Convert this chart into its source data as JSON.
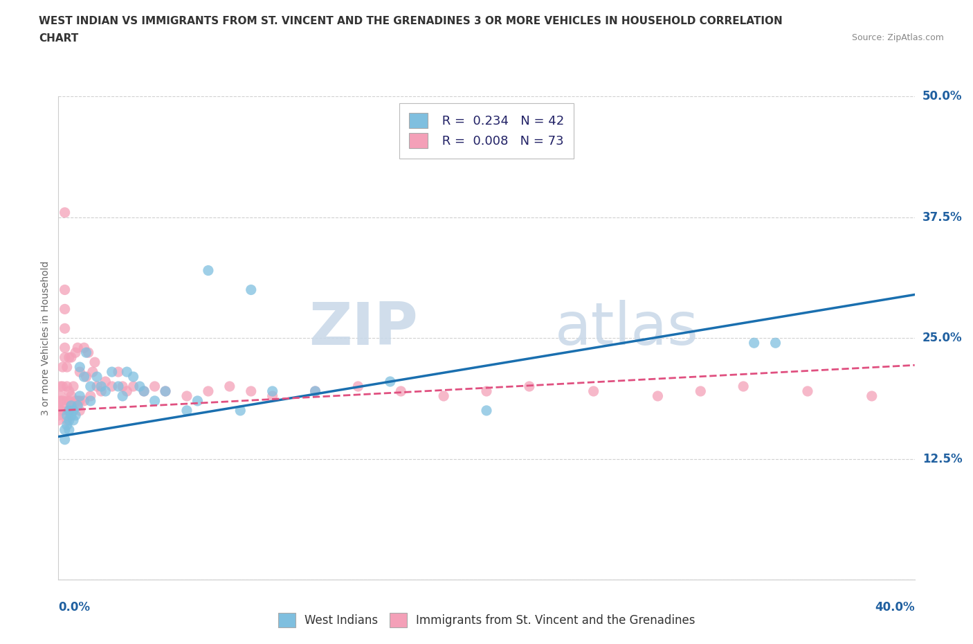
{
  "title_line1": "WEST INDIAN VS IMMIGRANTS FROM ST. VINCENT AND THE GRENADINES 3 OR MORE VEHICLES IN HOUSEHOLD CORRELATION",
  "title_line2": "CHART",
  "source_text": "Source: ZipAtlas.com",
  "ylabel": "3 or more Vehicles in Household",
  "xlim": [
    0.0,
    0.4
  ],
  "ylim": [
    0.0,
    0.5
  ],
  "yticks": [
    0.0,
    0.125,
    0.25,
    0.375,
    0.5
  ],
  "ytick_labels": [
    "",
    "12.5%",
    "25.0%",
    "37.5%",
    "50.0%"
  ],
  "blue_R": 0.234,
  "blue_N": 42,
  "pink_R": 0.008,
  "pink_N": 73,
  "blue_color": "#7fbfdf",
  "pink_color": "#f4a0b8",
  "blue_line_color": "#1a6faf",
  "pink_line_color": "#e05080",
  "watermark_zip": "ZIP",
  "watermark_atlas": "atlas",
  "blue_trend_x0": 0.0,
  "blue_trend_y0": 0.148,
  "blue_trend_x1": 0.4,
  "blue_trend_y1": 0.295,
  "pink_trend_x0": 0.0,
  "pink_trend_y0": 0.175,
  "pink_trend_x1": 0.4,
  "pink_trend_y1": 0.222,
  "blue_x": [
    0.003,
    0.003,
    0.004,
    0.004,
    0.005,
    0.005,
    0.005,
    0.006,
    0.006,
    0.007,
    0.007,
    0.008,
    0.009,
    0.01,
    0.01,
    0.012,
    0.013,
    0.015,
    0.015,
    0.018,
    0.02,
    0.022,
    0.025,
    0.028,
    0.03,
    0.032,
    0.035,
    0.038,
    0.04,
    0.045,
    0.05,
    0.06,
    0.065,
    0.07,
    0.085,
    0.09,
    0.1,
    0.12,
    0.155,
    0.2,
    0.325,
    0.335
  ],
  "blue_y": [
    0.155,
    0.145,
    0.17,
    0.16,
    0.175,
    0.165,
    0.155,
    0.18,
    0.17,
    0.175,
    0.165,
    0.17,
    0.18,
    0.22,
    0.19,
    0.21,
    0.235,
    0.2,
    0.185,
    0.21,
    0.2,
    0.195,
    0.215,
    0.2,
    0.19,
    0.215,
    0.21,
    0.2,
    0.195,
    0.185,
    0.195,
    0.175,
    0.185,
    0.32,
    0.175,
    0.3,
    0.195,
    0.195,
    0.205,
    0.175,
    0.245,
    0.245
  ],
  "pink_x": [
    0.0,
    0.0,
    0.0,
    0.001,
    0.001,
    0.001,
    0.001,
    0.002,
    0.002,
    0.002,
    0.002,
    0.003,
    0.003,
    0.003,
    0.003,
    0.003,
    0.003,
    0.004,
    0.004,
    0.004,
    0.004,
    0.004,
    0.005,
    0.005,
    0.005,
    0.005,
    0.006,
    0.006,
    0.006,
    0.007,
    0.007,
    0.008,
    0.008,
    0.009,
    0.009,
    0.01,
    0.01,
    0.01,
    0.012,
    0.012,
    0.013,
    0.014,
    0.015,
    0.016,
    0.017,
    0.018,
    0.02,
    0.022,
    0.025,
    0.028,
    0.03,
    0.032,
    0.035,
    0.04,
    0.045,
    0.05,
    0.06,
    0.07,
    0.08,
    0.09,
    0.1,
    0.12,
    0.14,
    0.16,
    0.18,
    0.2,
    0.22,
    0.25,
    0.28,
    0.3,
    0.32,
    0.35,
    0.38
  ],
  "pink_y": [
    0.165,
    0.17,
    0.18,
    0.175,
    0.185,
    0.19,
    0.2,
    0.175,
    0.185,
    0.2,
    0.22,
    0.23,
    0.24,
    0.26,
    0.28,
    0.3,
    0.38,
    0.165,
    0.175,
    0.185,
    0.2,
    0.22,
    0.175,
    0.185,
    0.195,
    0.23,
    0.18,
    0.19,
    0.23,
    0.18,
    0.2,
    0.185,
    0.235,
    0.185,
    0.24,
    0.175,
    0.185,
    0.215,
    0.185,
    0.24,
    0.21,
    0.235,
    0.19,
    0.215,
    0.225,
    0.2,
    0.195,
    0.205,
    0.2,
    0.215,
    0.2,
    0.195,
    0.2,
    0.195,
    0.2,
    0.195,
    0.19,
    0.195,
    0.2,
    0.195,
    0.19,
    0.195,
    0.2,
    0.195,
    0.19,
    0.195,
    0.2,
    0.195,
    0.19,
    0.195,
    0.2,
    0.195,
    0.19
  ]
}
